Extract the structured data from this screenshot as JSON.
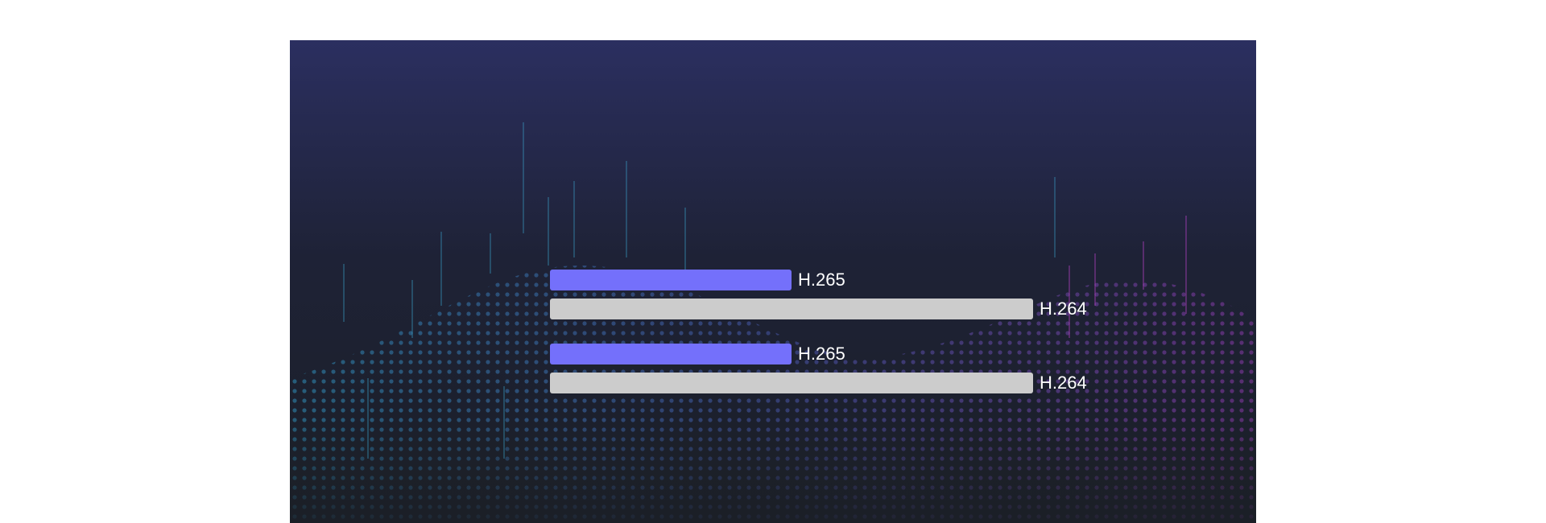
{
  "comparisons": [
    {
      "bars": [
        {
          "label": "H.265",
          "value": 50,
          "color": "#7470fb"
        },
        {
          "label": "H.264",
          "value": 100,
          "color": "#cccccc"
        }
      ]
    },
    {
      "bars": [
        {
          "label": "H.265",
          "value": 50,
          "color": "#7470fb"
        },
        {
          "label": "H.264",
          "value": 100,
          "color": "#cccccc"
        }
      ]
    }
  ]
}
